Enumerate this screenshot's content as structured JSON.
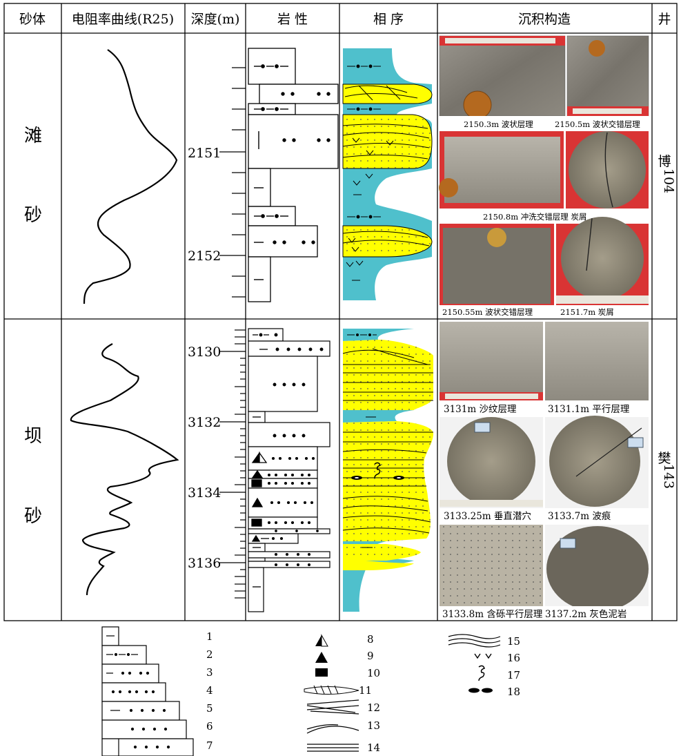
{
  "header": {
    "col_sandbody": "砂体",
    "col_resistivity": "电阻率曲线(R25)",
    "col_depth": "深度(m)",
    "col_lithology": "岩 性",
    "col_facies": "相 序",
    "col_structure": "沉积构造",
    "col_well": "井"
  },
  "upper": {
    "sandbody": [
      "滩",
      "砂"
    ],
    "well": [
      "博",
      "104"
    ],
    "depths": [
      "2151",
      "2152"
    ],
    "captions": [
      "2150.3m 波状层理",
      "2150.5m 波状交错层理",
      "2150.8m 冲洗交错层理 炭屑",
      "2150.55m 波状交错层理",
      "2151.7m 炭屑"
    ]
  },
  "lower": {
    "sandbody": [
      "坝",
      "砂"
    ],
    "well": [
      "樊",
      "143"
    ],
    "depths": [
      "3130",
      "3132",
      "3134",
      "3136"
    ],
    "captions": [
      "3131m 沙纹层理",
      "3131.1m 平行层理",
      "3133.25m 垂直潜穴",
      "3133.7m 波痕",
      "3133.8m 含砾平行层理",
      "3137.2m 灰色泥岩"
    ]
  },
  "legend": {
    "lithology_numbers": [
      "1",
      "2",
      "3",
      "4",
      "5",
      "6",
      "7"
    ],
    "symbol_numbers_a": [
      "8",
      "9",
      "10",
      "11",
      "12",
      "13",
      "14"
    ],
    "symbol_numbers_b": [
      "15",
      "16",
      "17",
      "18"
    ]
  },
  "colors": {
    "sand": "#ffff00",
    "mud": "#4fc0cc",
    "photo_red": "#d93434"
  },
  "icons": [
    "half-triangle-icon",
    "triangle-icon",
    "rectangle-icon",
    "lens-icon",
    "cross-bedding-icon",
    "ripple-icon",
    "parallel-lines-icon",
    "wavy-lines-icon",
    "arrows-icon",
    "burrow-icon",
    "ellipses-icon"
  ]
}
